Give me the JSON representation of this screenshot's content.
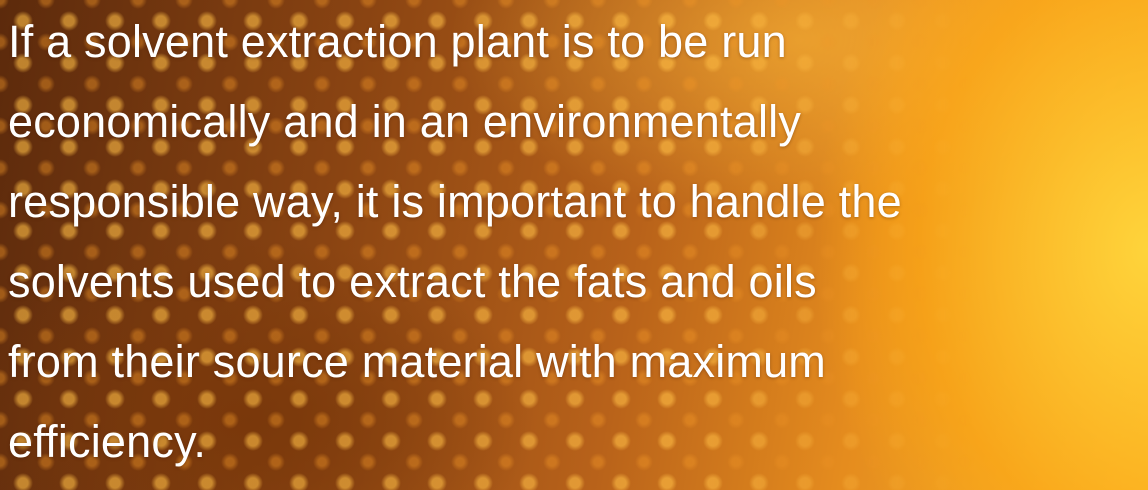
{
  "paragraph": {
    "lines": [
      "If a solvent extraction plant is to be run",
      "economically and in an environmentally",
      "responsible way, it is important to handle the",
      "solvents used to extract the fats and oils",
      "from their source material with maximum",
      "efficiency."
    ]
  }
}
